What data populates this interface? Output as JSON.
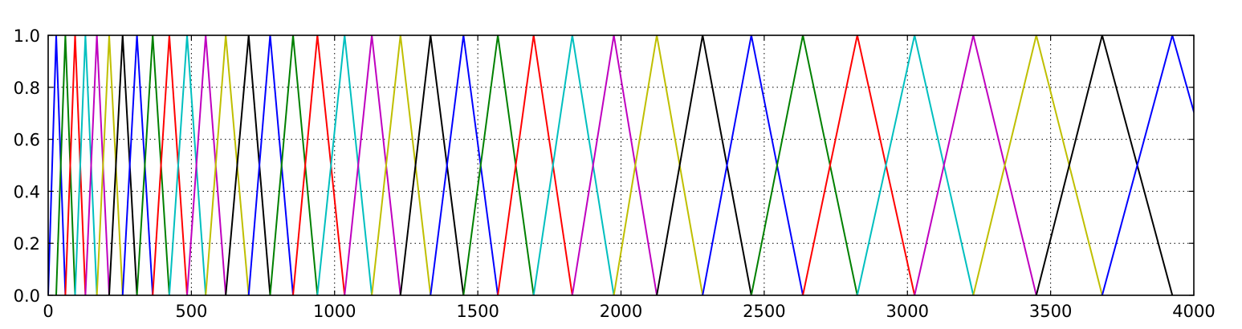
{
  "chart_data": {
    "type": "line",
    "title": "",
    "xlabel": "",
    "ylabel": "",
    "xlim": [
      0,
      4000
    ],
    "ylim": [
      0,
      1.0
    ],
    "x_ticks": [
      "0",
      "500",
      "1000",
      "1500",
      "2000",
      "2500",
      "3000",
      "3500",
      "4000"
    ],
    "y_ticks": [
      "0.0",
      "0.2",
      "0.4",
      "0.6",
      "0.8",
      "1.0"
    ],
    "grid": true,
    "legend": "none",
    "color_cycle": [
      "#0000ff",
      "#008000",
      "#ff0000",
      "#00bfbf",
      "#bf00bf",
      "#bfbf00",
      "#000000"
    ],
    "description_note": "Overlapping triangular filters; each series has x = [left, center, right], y = [0, 1, 0]",
    "series": [
      {
        "x": [
          0,
          28,
          60
        ],
        "y": [
          0,
          1,
          0
        ]
      },
      {
        "x": [
          28,
          60,
          94
        ],
        "y": [
          0,
          1,
          0
        ]
      },
      {
        "x": [
          60,
          94,
          130
        ],
        "y": [
          0,
          1,
          0
        ]
      },
      {
        "x": [
          94,
          130,
          170
        ],
        "y": [
          0,
          1,
          0
        ]
      },
      {
        "x": [
          130,
          170,
          213
        ],
        "y": [
          0,
          1,
          0
        ]
      },
      {
        "x": [
          170,
          213,
          260
        ],
        "y": [
          0,
          1,
          0
        ]
      },
      {
        "x": [
          213,
          260,
          310
        ],
        "y": [
          0,
          1,
          0
        ]
      },
      {
        "x": [
          260,
          310,
          365
        ],
        "y": [
          0,
          1,
          0
        ]
      },
      {
        "x": [
          310,
          365,
          423
        ],
        "y": [
          0,
          1,
          0
        ]
      },
      {
        "x": [
          365,
          423,
          485
        ],
        "y": [
          0,
          1,
          0
        ]
      },
      {
        "x": [
          423,
          485,
          550
        ],
        "y": [
          0,
          1,
          0
        ]
      },
      {
        "x": [
          485,
          550,
          620
        ],
        "y": [
          0,
          1,
          0
        ]
      },
      {
        "x": [
          550,
          620,
          700
        ],
        "y": [
          0,
          1,
          0
        ]
      },
      {
        "x": [
          620,
          700,
          775
        ],
        "y": [
          0,
          1,
          0
        ]
      },
      {
        "x": [
          700,
          775,
          855
        ],
        "y": [
          0,
          1,
          0
        ]
      },
      {
        "x": [
          775,
          855,
          940
        ],
        "y": [
          0,
          1,
          0
        ]
      },
      {
        "x": [
          855,
          940,
          1035
        ],
        "y": [
          0,
          1,
          0
        ]
      },
      {
        "x": [
          940,
          1035,
          1130
        ],
        "y": [
          0,
          1,
          0
        ]
      },
      {
        "x": [
          1035,
          1130,
          1230
        ],
        "y": [
          0,
          1,
          0
        ]
      },
      {
        "x": [
          1130,
          1230,
          1335
        ],
        "y": [
          0,
          1,
          0
        ]
      },
      {
        "x": [
          1230,
          1335,
          1450
        ],
        "y": [
          0,
          1,
          0
        ]
      },
      {
        "x": [
          1335,
          1450,
          1570
        ],
        "y": [
          0,
          1,
          0
        ]
      },
      {
        "x": [
          1450,
          1570,
          1695
        ],
        "y": [
          0,
          1,
          0
        ]
      },
      {
        "x": [
          1570,
          1695,
          1830
        ],
        "y": [
          0,
          1,
          0
        ]
      },
      {
        "x": [
          1695,
          1830,
          1975
        ],
        "y": [
          0,
          1,
          0
        ]
      },
      {
        "x": [
          1830,
          1975,
          2125
        ],
        "y": [
          0,
          1,
          0
        ]
      },
      {
        "x": [
          1975,
          2125,
          2285
        ],
        "y": [
          0,
          1,
          0
        ]
      },
      {
        "x": [
          2125,
          2285,
          2455
        ],
        "y": [
          0,
          1,
          0
        ]
      },
      {
        "x": [
          2285,
          2455,
          2635
        ],
        "y": [
          0,
          1,
          0
        ]
      },
      {
        "x": [
          2455,
          2635,
          2825
        ],
        "y": [
          0,
          1,
          0
        ]
      },
      {
        "x": [
          2635,
          2825,
          3025
        ],
        "y": [
          0,
          1,
          0
        ]
      },
      {
        "x": [
          2825,
          3025,
          3230
        ],
        "y": [
          0,
          1,
          0
        ]
      },
      {
        "x": [
          3025,
          3230,
          3450
        ],
        "y": [
          0,
          1,
          0
        ]
      },
      {
        "x": [
          3230,
          3450,
          3680
        ],
        "y": [
          0,
          1,
          0
        ]
      },
      {
        "x": [
          3450,
          3680,
          3925
        ],
        "y": [
          0,
          1,
          0
        ]
      },
      {
        "x": [
          3680,
          3925,
          4180
        ],
        "y": [
          0,
          1,
          0
        ]
      }
    ]
  }
}
